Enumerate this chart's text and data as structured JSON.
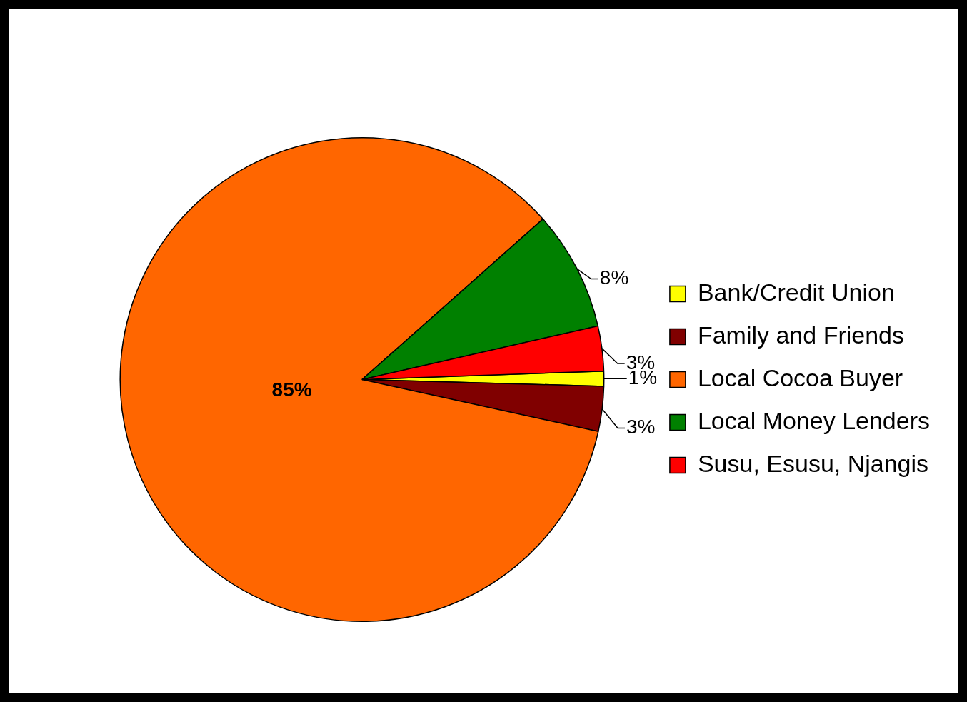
{
  "chart_data": {
    "type": "pie",
    "categories": [
      "Bank/Credit Union",
      "Family and Friends",
      "Local Cocoa Buyer",
      "Local Money Lenders",
      "Susu, Esusu, Njangis"
    ],
    "values": [
      1,
      3,
      85,
      8,
      3
    ],
    "colors": [
      "#ffff00",
      "#800000",
      "#ff6600",
      "#008000",
      "#ff0000"
    ],
    "value_labels": [
      "1%",
      "3%",
      "85%",
      "8%",
      "3%"
    ],
    "legend": "right"
  }
}
